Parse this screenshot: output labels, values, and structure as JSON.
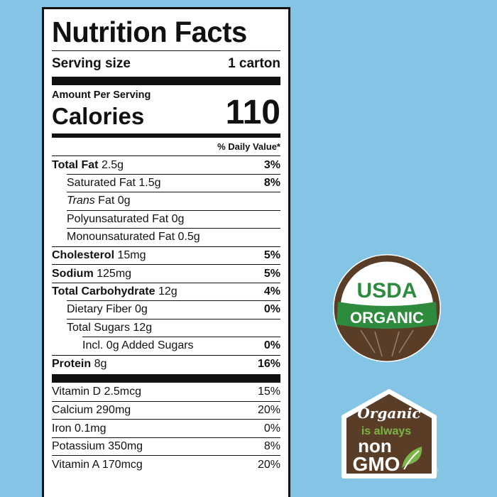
{
  "label": {
    "title": "Nutrition Facts",
    "serving_label": "Serving size",
    "serving_value": "1 carton",
    "amount_per_serving": "Amount Per Serving",
    "calories_label": "Calories",
    "calories_value": "110",
    "daily_value_header": "% Daily Value*",
    "nutrients": [
      {
        "name": "Total Fat",
        "amount": "2.5g",
        "dv": "3%"
      },
      {
        "name": "Saturated Fat",
        "amount": "1.5g",
        "dv": "8%"
      },
      {
        "name": "Trans",
        "name_rest": "Fat",
        "amount": "0g",
        "dv": ""
      },
      {
        "name": "Polyunsaturated Fat",
        "amount": "0g",
        "dv": ""
      },
      {
        "name": "Monounsaturated Fat",
        "amount": "0.5g",
        "dv": ""
      },
      {
        "name": "Cholesterol",
        "amount": "15mg",
        "dv": "5%"
      },
      {
        "name": "Sodium",
        "amount": "125mg",
        "dv": "5%"
      },
      {
        "name": "Total Carbohydrate",
        "amount": "12g",
        "dv": "4%"
      },
      {
        "name": "Dietary Fiber",
        "amount": "0g",
        "dv": "0%"
      },
      {
        "name": "Total Sugars",
        "amount": "12g",
        "dv": ""
      },
      {
        "name": "Incl. 0g Added Sugars",
        "amount": "",
        "dv": "0%"
      },
      {
        "name": "Protein",
        "amount": "8g",
        "dv": "16%"
      }
    ],
    "vitamins": [
      {
        "name": "Vitamin D",
        "amount": "2.5mcg",
        "dv": "15%"
      },
      {
        "name": "Calcium",
        "amount": "290mg",
        "dv": "20%"
      },
      {
        "name": "Iron",
        "amount": "0.1mg",
        "dv": "0%"
      },
      {
        "name": "Potassium",
        "amount": "350mg",
        "dv": "8%"
      },
      {
        "name": "Vitamin A",
        "amount": "170mcg",
        "dv": "20%"
      }
    ]
  },
  "usda_badge": {
    "top_text": "USDA",
    "banner_text": "ORGANIC",
    "colors": {
      "green": "#2e8b3e",
      "brown": "#5a3d26"
    }
  },
  "gmo_badge": {
    "line1": "Organic",
    "line2": "is always",
    "line3": "non",
    "line4": "GMO",
    "registered": "®",
    "colors": {
      "house": "#5a3d26",
      "green": "#7ab648"
    }
  },
  "colors": {
    "background": "#84c5e6"
  }
}
